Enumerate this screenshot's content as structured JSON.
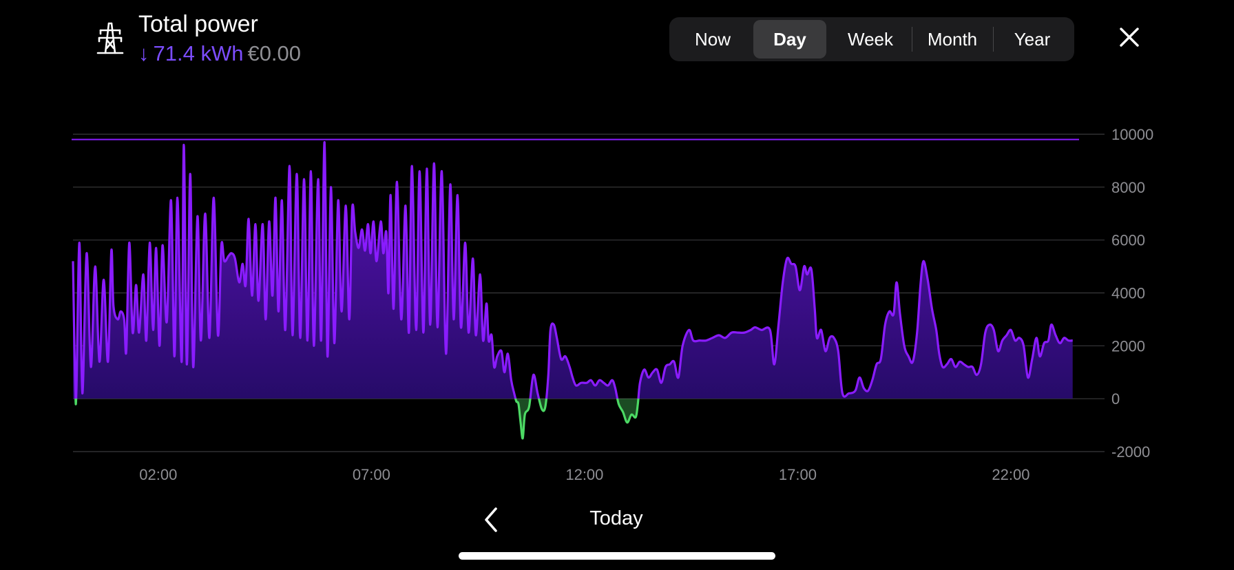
{
  "header": {
    "icon": "power-grid-pylon-icon",
    "title": "Total power",
    "direction_icon": "arrow-down-icon",
    "direction_glyph": "↓",
    "energy": "71.4 kWh",
    "cost": "€0.00"
  },
  "range_tabs": [
    {
      "label": "Now",
      "active": false
    },
    {
      "label": "Day",
      "active": true
    },
    {
      "label": "Week",
      "active": false
    },
    {
      "label": "Month",
      "active": false
    },
    {
      "label": "Year",
      "active": false
    }
  ],
  "close_icon": "close-icon",
  "footer": {
    "prev_icon": "chevron-left-icon",
    "period_label": "Today"
  },
  "colors": {
    "background": "#000000",
    "import_line": "#8a1cff",
    "import_fill_top": "#5b12b8",
    "import_fill_bottom": "#1e0a5c",
    "export_line": "#4cd964",
    "grid": "#3a3a3c",
    "tick_text": "#8e8e93",
    "accent_text": "#7c4dff",
    "limit_line": "#8a1cff"
  },
  "chart_data": {
    "type": "area",
    "title": "",
    "xlabel": "",
    "ylabel": "",
    "x_unit": "hours",
    "xlim": [
      0.0,
      23.6
    ],
    "ylim": [
      -2000,
      10000
    ],
    "yticks": [
      10000,
      8000,
      6000,
      4000,
      2000,
      0,
      -2000
    ],
    "y_tick_labels": [
      "10000",
      "8000",
      "6000",
      "4000",
      "2000",
      "0",
      "-2000"
    ],
    "x_tick_positions": [
      2,
      7,
      12,
      17,
      22
    ],
    "x_tick_labels": [
      "02:00",
      "07:00",
      "12:00",
      "17:00",
      "22:00"
    ],
    "grid": true,
    "y_axis_side": "right",
    "limit_line": 9800,
    "series": [
      {
        "values": [
          [
            0.0,
            5200
          ],
          [
            0.05,
            600
          ],
          [
            0.08,
            300
          ],
          [
            0.15,
            5900
          ],
          [
            0.22,
            200
          ],
          [
            0.32,
            5500
          ],
          [
            0.42,
            1200
          ],
          [
            0.52,
            5000
          ],
          [
            0.62,
            1400
          ],
          [
            0.72,
            4500
          ],
          [
            0.82,
            1400
          ],
          [
            0.9,
            5600
          ],
          [
            0.95,
            3500
          ],
          [
            1.05,
            3000
          ],
          [
            1.12,
            3300
          ],
          [
            1.2,
            3000
          ],
          [
            1.25,
            1800
          ],
          [
            1.32,
            5900
          ],
          [
            1.4,
            2500
          ],
          [
            1.48,
            4300
          ],
          [
            1.55,
            2500
          ],
          [
            1.65,
            4700
          ],
          [
            1.72,
            2200
          ],
          [
            1.8,
            5900
          ],
          [
            1.88,
            2600
          ],
          [
            1.95,
            5700
          ],
          [
            2.03,
            2000
          ],
          [
            2.1,
            5800
          ],
          [
            2.2,
            2900
          ],
          [
            2.3,
            7500
          ],
          [
            2.38,
            1600
          ],
          [
            2.45,
            7600
          ],
          [
            2.55,
            1400
          ],
          [
            2.6,
            9600
          ],
          [
            2.67,
            1300
          ],
          [
            2.75,
            8500
          ],
          [
            2.82,
            1200
          ],
          [
            2.92,
            6900
          ],
          [
            3.0,
            2200
          ],
          [
            3.1,
            7000
          ],
          [
            3.2,
            2300
          ],
          [
            3.3,
            7600
          ],
          [
            3.4,
            2400
          ],
          [
            3.48,
            5800
          ],
          [
            3.55,
            5200
          ],
          [
            3.65,
            5400
          ],
          [
            3.72,
            5500
          ],
          [
            3.8,
            5300
          ],
          [
            3.9,
            4400
          ],
          [
            3.98,
            5100
          ],
          [
            4.05,
            4300
          ],
          [
            4.12,
            6800
          ],
          [
            4.2,
            3900
          ],
          [
            4.28,
            6600
          ],
          [
            4.35,
            3700
          ],
          [
            4.45,
            6600
          ],
          [
            4.52,
            3000
          ],
          [
            4.6,
            6700
          ],
          [
            4.68,
            3900
          ],
          [
            4.75,
            7600
          ],
          [
            4.82,
            3300
          ],
          [
            4.9,
            7500
          ],
          [
            4.98,
            2600
          ],
          [
            5.08,
            8800
          ],
          [
            5.15,
            2400
          ],
          [
            5.25,
            8500
          ],
          [
            5.33,
            2300
          ],
          [
            5.42,
            8300
          ],
          [
            5.5,
            2200
          ],
          [
            5.58,
            8600
          ],
          [
            5.65,
            2000
          ],
          [
            5.75,
            8300
          ],
          [
            5.82,
            2200
          ],
          [
            5.9,
            9700
          ],
          [
            5.97,
            1600
          ],
          [
            6.05,
            8000
          ],
          [
            6.13,
            2100
          ],
          [
            6.22,
            7500
          ],
          [
            6.3,
            3300
          ],
          [
            6.4,
            7300
          ],
          [
            6.48,
            3000
          ],
          [
            6.55,
            7200
          ],
          [
            6.62,
            6300
          ],
          [
            6.7,
            5700
          ],
          [
            6.78,
            6400
          ],
          [
            6.85,
            5600
          ],
          [
            6.92,
            6600
          ],
          [
            6.98,
            5500
          ],
          [
            7.05,
            6700
          ],
          [
            7.12,
            5200
          ],
          [
            7.22,
            6700
          ],
          [
            7.28,
            5500
          ],
          [
            7.35,
            6300
          ],
          [
            7.4,
            4000
          ],
          [
            7.45,
            7700
          ],
          [
            7.52,
            3400
          ],
          [
            7.6,
            8200
          ],
          [
            7.7,
            3000
          ],
          [
            7.8,
            7300
          ],
          [
            7.88,
            2500
          ],
          [
            7.95,
            8800
          ],
          [
            8.05,
            2600
          ],
          [
            8.13,
            8600
          ],
          [
            8.22,
            2500
          ],
          [
            8.3,
            8700
          ],
          [
            8.38,
            2800
          ],
          [
            8.47,
            8900
          ],
          [
            8.55,
            2700
          ],
          [
            8.65,
            8600
          ],
          [
            8.75,
            1700
          ],
          [
            8.85,
            8100
          ],
          [
            8.93,
            3000
          ],
          [
            9.02,
            7700
          ],
          [
            9.1,
            2700
          ],
          [
            9.2,
            5900
          ],
          [
            9.28,
            2500
          ],
          [
            9.38,
            5300
          ],
          [
            9.45,
            2400
          ],
          [
            9.55,
            4700
          ],
          [
            9.62,
            2200
          ],
          [
            9.7,
            3600
          ],
          [
            9.75,
            2200
          ],
          [
            9.82,
            2400
          ],
          [
            9.88,
            1200
          ],
          [
            9.95,
            1600
          ],
          [
            10.05,
            1800
          ],
          [
            10.12,
            1000
          ],
          [
            10.2,
            1700
          ],
          [
            10.28,
            700
          ],
          [
            10.35,
            200
          ],
          [
            10.4,
            -100
          ],
          [
            10.45,
            -200
          ],
          [
            10.5,
            -900
          ],
          [
            10.55,
            -1500
          ],
          [
            10.6,
            -600
          ],
          [
            10.7,
            -300
          ],
          [
            10.8,
            900
          ],
          [
            10.9,
            200
          ],
          [
            11.0,
            -400
          ],
          [
            11.08,
            -300
          ],
          [
            11.15,
            900
          ],
          [
            11.2,
            2600
          ],
          [
            11.28,
            2800
          ],
          [
            11.35,
            2300
          ],
          [
            11.45,
            1500
          ],
          [
            11.55,
            1600
          ],
          [
            11.65,
            1200
          ],
          [
            11.72,
            800
          ],
          [
            11.8,
            500
          ],
          [
            11.92,
            600
          ],
          [
            12.05,
            600
          ],
          [
            12.15,
            700
          ],
          [
            12.25,
            500
          ],
          [
            12.35,
            700
          ],
          [
            12.45,
            600
          ],
          [
            12.55,
            500
          ],
          [
            12.65,
            700
          ],
          [
            12.72,
            400
          ],
          [
            12.8,
            -200
          ],
          [
            12.9,
            -500
          ],
          [
            13.0,
            -900
          ],
          [
            13.1,
            -600
          ],
          [
            13.2,
            -700
          ],
          [
            13.25,
            -200
          ],
          [
            13.3,
            600
          ],
          [
            13.4,
            1100
          ],
          [
            13.5,
            800
          ],
          [
            13.6,
            1000
          ],
          [
            13.7,
            1100
          ],
          [
            13.8,
            600
          ],
          [
            13.9,
            1200
          ],
          [
            14.0,
            1300
          ],
          [
            14.1,
            1400
          ],
          [
            14.2,
            800
          ],
          [
            14.3,
            2000
          ],
          [
            14.45,
            2600
          ],
          [
            14.55,
            2200
          ],
          [
            14.7,
            2200
          ],
          [
            14.85,
            2200
          ],
          [
            15.0,
            2300
          ],
          [
            15.15,
            2400
          ],
          [
            15.3,
            2300
          ],
          [
            15.45,
            2500
          ],
          [
            15.6,
            2500
          ],
          [
            15.75,
            2500
          ],
          [
            15.9,
            2600
          ],
          [
            16.0,
            2700
          ],
          [
            16.15,
            2600
          ],
          [
            16.35,
            2600
          ],
          [
            16.45,
            1300
          ],
          [
            16.55,
            2800
          ],
          [
            16.65,
            4400
          ],
          [
            16.75,
            5300
          ],
          [
            16.85,
            5100
          ],
          [
            16.95,
            5000
          ],
          [
            17.05,
            4100
          ],
          [
            17.15,
            5000
          ],
          [
            17.22,
            4700
          ],
          [
            17.32,
            4900
          ],
          [
            17.4,
            3400
          ],
          [
            17.45,
            2300
          ],
          [
            17.55,
            2600
          ],
          [
            17.65,
            1800
          ],
          [
            17.75,
            2300
          ],
          [
            17.85,
            2300
          ],
          [
            17.95,
            1800
          ],
          [
            18.05,
            200
          ],
          [
            18.2,
            200
          ],
          [
            18.35,
            300
          ],
          [
            18.45,
            800
          ],
          [
            18.55,
            400
          ],
          [
            18.65,
            300
          ],
          [
            18.75,
            700
          ],
          [
            18.85,
            1300
          ],
          [
            18.95,
            1500
          ],
          [
            19.05,
            2800
          ],
          [
            19.15,
            3300
          ],
          [
            19.25,
            3200
          ],
          [
            19.32,
            4400
          ],
          [
            19.4,
            3200
          ],
          [
            19.5,
            2000
          ],
          [
            19.6,
            1600
          ],
          [
            19.7,
            1400
          ],
          [
            19.8,
            2500
          ],
          [
            19.88,
            4300
          ],
          [
            19.95,
            5200
          ],
          [
            20.05,
            4500
          ],
          [
            20.15,
            3400
          ],
          [
            20.25,
            2600
          ],
          [
            20.32,
            1700
          ],
          [
            20.4,
            1200
          ],
          [
            20.5,
            1300
          ],
          [
            20.6,
            1500
          ],
          [
            20.7,
            1200
          ],
          [
            20.8,
            1400
          ],
          [
            20.9,
            1300
          ],
          [
            21.0,
            1200
          ],
          [
            21.1,
            1200
          ],
          [
            21.2,
            900
          ],
          [
            21.3,
            1300
          ],
          [
            21.4,
            2500
          ],
          [
            21.5,
            2800
          ],
          [
            21.6,
            2600
          ],
          [
            21.7,
            1800
          ],
          [
            21.8,
            2200
          ],
          [
            21.9,
            2400
          ],
          [
            22.0,
            2600
          ],
          [
            22.1,
            2200
          ],
          [
            22.2,
            2300
          ],
          [
            22.3,
            2000
          ],
          [
            22.4,
            800
          ],
          [
            22.5,
            1500
          ],
          [
            22.6,
            2300
          ],
          [
            22.68,
            1600
          ],
          [
            22.78,
            2100
          ],
          [
            22.88,
            2200
          ],
          [
            22.95,
            2800
          ],
          [
            23.05,
            2400
          ],
          [
            23.15,
            2100
          ],
          [
            23.25,
            2300
          ],
          [
            23.35,
            2200
          ],
          [
            23.45,
            2200
          ]
        ]
      }
    ]
  }
}
